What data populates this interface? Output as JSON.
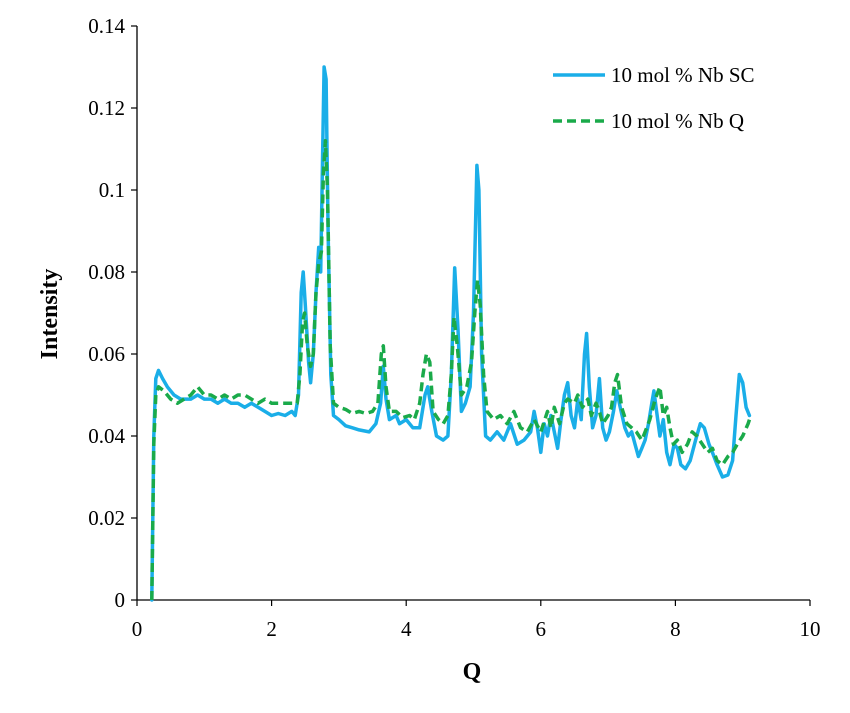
{
  "chart_data": {
    "type": "line",
    "title": "",
    "xlabel": "Q",
    "ylabel": "Intensity",
    "xlim": [
      0,
      10
    ],
    "ylim": [
      0,
      0.14
    ],
    "x_ticks": [
      0,
      2,
      4,
      6,
      8,
      10
    ],
    "y_ticks": [
      0,
      0.02,
      0.04,
      0.06,
      0.08,
      0.1,
      0.12,
      0.14
    ],
    "x_tick_labels": [
      "0",
      "2",
      "4",
      "6",
      "8",
      "10"
    ],
    "y_tick_labels": [
      "0",
      "0.02",
      "0.04",
      "0.06",
      "0.08",
      "0.1",
      "0.12",
      "0.14"
    ],
    "grid": false,
    "legend_position": "top-right",
    "series": [
      {
        "name": "10 mol % Nb SC",
        "color": "#1aaee8",
        "dash": "solid",
        "points": [
          [
            0.22,
            0.0
          ],
          [
            0.25,
            0.04
          ],
          [
            0.28,
            0.054
          ],
          [
            0.32,
            0.056
          ],
          [
            0.38,
            0.054
          ],
          [
            0.45,
            0.052
          ],
          [
            0.55,
            0.05
          ],
          [
            0.65,
            0.049
          ],
          [
            0.8,
            0.049
          ],
          [
            0.9,
            0.05
          ],
          [
            1.0,
            0.049
          ],
          [
            1.1,
            0.049
          ],
          [
            1.2,
            0.048
          ],
          [
            1.3,
            0.049
          ],
          [
            1.4,
            0.048
          ],
          [
            1.5,
            0.048
          ],
          [
            1.6,
            0.047
          ],
          [
            1.7,
            0.048
          ],
          [
            1.8,
            0.047
          ],
          [
            1.9,
            0.046
          ],
          [
            2.0,
            0.045
          ],
          [
            2.1,
            0.0455
          ],
          [
            2.2,
            0.045
          ],
          [
            2.3,
            0.046
          ],
          [
            2.35,
            0.045
          ],
          [
            2.4,
            0.05
          ],
          [
            2.44,
            0.075
          ],
          [
            2.47,
            0.08
          ],
          [
            2.5,
            0.072
          ],
          [
            2.55,
            0.058
          ],
          [
            2.58,
            0.053
          ],
          [
            2.62,
            0.06
          ],
          [
            2.66,
            0.075
          ],
          [
            2.7,
            0.086
          ],
          [
            2.73,
            0.08
          ],
          [
            2.76,
            0.11
          ],
          [
            2.78,
            0.13
          ],
          [
            2.81,
            0.127
          ],
          [
            2.84,
            0.09
          ],
          [
            2.88,
            0.055
          ],
          [
            2.92,
            0.045
          ],
          [
            3.0,
            0.044
          ],
          [
            3.1,
            0.0425
          ],
          [
            3.2,
            0.042
          ],
          [
            3.3,
            0.0415
          ],
          [
            3.45,
            0.041
          ],
          [
            3.55,
            0.043
          ],
          [
            3.62,
            0.048
          ],
          [
            3.66,
            0.057
          ],
          [
            3.7,
            0.049
          ],
          [
            3.75,
            0.044
          ],
          [
            3.85,
            0.045
          ],
          [
            3.9,
            0.043
          ],
          [
            4.0,
            0.044
          ],
          [
            4.1,
            0.042
          ],
          [
            4.2,
            0.042
          ],
          [
            4.28,
            0.05
          ],
          [
            4.32,
            0.052
          ],
          [
            4.38,
            0.046
          ],
          [
            4.45,
            0.04
          ],
          [
            4.55,
            0.039
          ],
          [
            4.62,
            0.04
          ],
          [
            4.67,
            0.055
          ],
          [
            4.72,
            0.081
          ],
          [
            4.77,
            0.066
          ],
          [
            4.82,
            0.046
          ],
          [
            4.88,
            0.048
          ],
          [
            4.95,
            0.052
          ],
          [
            5.0,
            0.07
          ],
          [
            5.05,
            0.106
          ],
          [
            5.08,
            0.1
          ],
          [
            5.12,
            0.06
          ],
          [
            5.18,
            0.04
          ],
          [
            5.25,
            0.039
          ],
          [
            5.35,
            0.041
          ],
          [
            5.45,
            0.039
          ],
          [
            5.55,
            0.043
          ],
          [
            5.65,
            0.038
          ],
          [
            5.75,
            0.039
          ],
          [
            5.85,
            0.041
          ],
          [
            5.9,
            0.046
          ],
          [
            5.95,
            0.042
          ],
          [
            6.0,
            0.036
          ],
          [
            6.05,
            0.043
          ],
          [
            6.1,
            0.04
          ],
          [
            6.15,
            0.045
          ],
          [
            6.2,
            0.041
          ],
          [
            6.25,
            0.037
          ],
          [
            6.3,
            0.044
          ],
          [
            6.35,
            0.05
          ],
          [
            6.4,
            0.053
          ],
          [
            6.45,
            0.045
          ],
          [
            6.5,
            0.042
          ],
          [
            6.55,
            0.049
          ],
          [
            6.6,
            0.044
          ],
          [
            6.65,
            0.06
          ],
          [
            6.68,
            0.065
          ],
          [
            6.72,
            0.052
          ],
          [
            6.77,
            0.042
          ],
          [
            6.82,
            0.045
          ],
          [
            6.87,
            0.054
          ],
          [
            6.92,
            0.042
          ],
          [
            6.97,
            0.039
          ],
          [
            7.02,
            0.041
          ],
          [
            7.08,
            0.046
          ],
          [
            7.13,
            0.051
          ],
          [
            7.18,
            0.047
          ],
          [
            7.25,
            0.042
          ],
          [
            7.3,
            0.04
          ],
          [
            7.35,
            0.041
          ],
          [
            7.4,
            0.038
          ],
          [
            7.45,
            0.035
          ],
          [
            7.5,
            0.037
          ],
          [
            7.55,
            0.039
          ],
          [
            7.6,
            0.043
          ],
          [
            7.65,
            0.048
          ],
          [
            7.68,
            0.051
          ],
          [
            7.72,
            0.046
          ],
          [
            7.77,
            0.04
          ],
          [
            7.82,
            0.044
          ],
          [
            7.87,
            0.036
          ],
          [
            7.92,
            0.033
          ],
          [
            7.98,
            0.038
          ],
          [
            8.03,
            0.037
          ],
          [
            8.08,
            0.033
          ],
          [
            8.15,
            0.032
          ],
          [
            8.22,
            0.034
          ],
          [
            8.3,
            0.039
          ],
          [
            8.37,
            0.043
          ],
          [
            8.43,
            0.042
          ],
          [
            8.5,
            0.038
          ],
          [
            8.55,
            0.036
          ],
          [
            8.62,
            0.033
          ],
          [
            8.7,
            0.03
          ],
          [
            8.78,
            0.0305
          ],
          [
            8.85,
            0.034
          ],
          [
            8.9,
            0.045
          ],
          [
            8.95,
            0.055
          ],
          [
            9.0,
            0.053
          ],
          [
            9.05,
            0.047
          ],
          [
            9.1,
            0.045
          ]
        ]
      },
      {
        "name": "10 mol % Nb Q",
        "color": "#1aaa4a",
        "dash": "dashed",
        "points": [
          [
            0.22,
            0.0
          ],
          [
            0.25,
            0.038
          ],
          [
            0.28,
            0.05
          ],
          [
            0.32,
            0.052
          ],
          [
            0.4,
            0.051
          ],
          [
            0.5,
            0.049
          ],
          [
            0.6,
            0.048
          ],
          [
            0.7,
            0.049
          ],
          [
            0.8,
            0.05
          ],
          [
            0.9,
            0.052
          ],
          [
            1.0,
            0.05
          ],
          [
            1.1,
            0.05
          ],
          [
            1.2,
            0.049
          ],
          [
            1.3,
            0.05
          ],
          [
            1.4,
            0.049
          ],
          [
            1.5,
            0.05
          ],
          [
            1.6,
            0.05
          ],
          [
            1.7,
            0.049
          ],
          [
            1.8,
            0.048
          ],
          [
            1.9,
            0.049
          ],
          [
            2.0,
            0.048
          ],
          [
            2.1,
            0.048
          ],
          [
            2.2,
            0.048
          ],
          [
            2.3,
            0.048
          ],
          [
            2.38,
            0.048
          ],
          [
            2.42,
            0.055
          ],
          [
            2.46,
            0.068
          ],
          [
            2.49,
            0.07
          ],
          [
            2.53,
            0.062
          ],
          [
            2.58,
            0.057
          ],
          [
            2.62,
            0.06
          ],
          [
            2.66,
            0.075
          ],
          [
            2.7,
            0.082
          ],
          [
            2.74,
            0.085
          ],
          [
            2.77,
            0.104
          ],
          [
            2.8,
            0.112
          ],
          [
            2.83,
            0.1
          ],
          [
            2.87,
            0.062
          ],
          [
            2.92,
            0.048
          ],
          [
            3.0,
            0.047
          ],
          [
            3.1,
            0.0465
          ],
          [
            3.2,
            0.0455
          ],
          [
            3.3,
            0.046
          ],
          [
            3.4,
            0.0455
          ],
          [
            3.5,
            0.046
          ],
          [
            3.58,
            0.048
          ],
          [
            3.63,
            0.06
          ],
          [
            3.66,
            0.062
          ],
          [
            3.7,
            0.052
          ],
          [
            3.75,
            0.046
          ],
          [
            3.85,
            0.046
          ],
          [
            3.95,
            0.0445
          ],
          [
            4.05,
            0.045
          ],
          [
            4.12,
            0.044
          ],
          [
            4.2,
            0.048
          ],
          [
            4.25,
            0.055
          ],
          [
            4.3,
            0.06
          ],
          [
            4.35,
            0.058
          ],
          [
            4.4,
            0.046
          ],
          [
            4.48,
            0.044
          ],
          [
            4.55,
            0.043
          ],
          [
            4.62,
            0.045
          ],
          [
            4.67,
            0.055
          ],
          [
            4.71,
            0.069
          ],
          [
            4.76,
            0.062
          ],
          [
            4.82,
            0.05
          ],
          [
            4.9,
            0.052
          ],
          [
            4.97,
            0.058
          ],
          [
            5.02,
            0.07
          ],
          [
            5.06,
            0.078
          ],
          [
            5.1,
            0.072
          ],
          [
            5.15,
            0.055
          ],
          [
            5.2,
            0.046
          ],
          [
            5.3,
            0.044
          ],
          [
            5.4,
            0.045
          ],
          [
            5.5,
            0.043
          ],
          [
            5.6,
            0.046
          ],
          [
            5.7,
            0.042
          ],
          [
            5.8,
            0.041
          ],
          [
            5.9,
            0.044
          ],
          [
            6.0,
            0.041
          ],
          [
            6.1,
            0.046
          ],
          [
            6.15,
            0.042
          ],
          [
            6.2,
            0.047
          ],
          [
            6.28,
            0.043
          ],
          [
            6.35,
            0.048
          ],
          [
            6.4,
            0.049
          ],
          [
            6.5,
            0.048
          ],
          [
            6.55,
            0.05
          ],
          [
            6.62,
            0.047
          ],
          [
            6.7,
            0.049
          ],
          [
            6.75,
            0.045
          ],
          [
            6.82,
            0.048
          ],
          [
            6.87,
            0.046
          ],
          [
            6.92,
            0.043
          ],
          [
            7.0,
            0.045
          ],
          [
            7.05,
            0.047
          ],
          [
            7.1,
            0.053
          ],
          [
            7.14,
            0.055
          ],
          [
            7.2,
            0.047
          ],
          [
            7.28,
            0.043
          ],
          [
            7.35,
            0.042
          ],
          [
            7.42,
            0.041
          ],
          [
            7.5,
            0.039
          ],
          [
            7.55,
            0.041
          ],
          [
            7.62,
            0.044
          ],
          [
            7.7,
            0.049
          ],
          [
            7.77,
            0.052
          ],
          [
            7.82,
            0.045
          ],
          [
            7.87,
            0.047
          ],
          [
            7.92,
            0.042
          ],
          [
            7.97,
            0.038
          ],
          [
            8.03,
            0.039
          ],
          [
            8.1,
            0.036
          ],
          [
            8.18,
            0.038
          ],
          [
            8.25,
            0.041
          ],
          [
            8.32,
            0.04
          ],
          [
            8.4,
            0.038
          ],
          [
            8.48,
            0.036
          ],
          [
            8.55,
            0.037
          ],
          [
            8.62,
            0.034
          ],
          [
            8.7,
            0.033
          ],
          [
            8.78,
            0.035
          ],
          [
            8.85,
            0.036
          ],
          [
            8.92,
            0.038
          ],
          [
            9.0,
            0.04
          ],
          [
            9.08,
            0.043
          ],
          [
            9.12,
            0.045
          ]
        ]
      }
    ]
  }
}
